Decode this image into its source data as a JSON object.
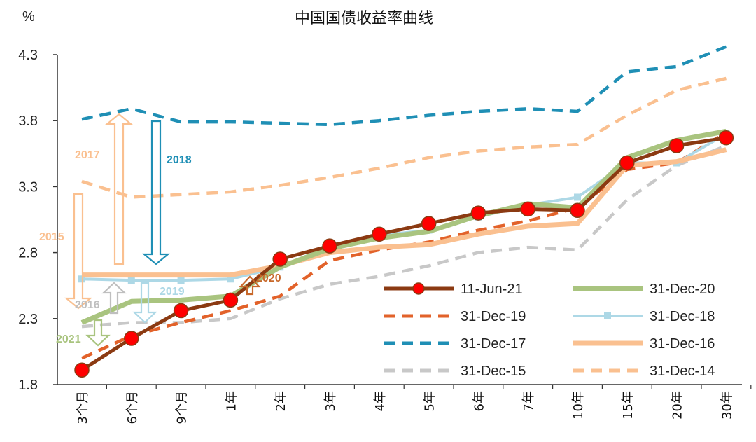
{
  "chart_data": {
    "type": "line",
    "title": "中国国债收益率曲线",
    "ylabel": "%",
    "xlabel": "",
    "ylim": [
      1.8,
      4.3
    ],
    "yticks": [
      "1.8",
      "2.3",
      "2.8",
      "3.3",
      "3.8",
      "4.3"
    ],
    "categories": [
      "3个月",
      "6个月",
      "9个月",
      "1年",
      "2年",
      "3年",
      "4年",
      "5年",
      "6年",
      "7年",
      "10年",
      "15年",
      "20年",
      "30年"
    ],
    "series": [
      {
        "name": "11-Jun-21",
        "color": "#8B3A12",
        "style": "solid-marker",
        "values": [
          1.91,
          2.15,
          2.36,
          2.44,
          2.75,
          2.85,
          2.94,
          3.02,
          3.1,
          3.13,
          3.12,
          3.48,
          3.61,
          3.67
        ]
      },
      {
        "name": "31-Dec-20",
        "color": "#A9C47F",
        "style": "solid",
        "values": [
          2.27,
          2.43,
          2.44,
          2.47,
          2.69,
          2.83,
          2.91,
          2.96,
          3.08,
          3.17,
          3.14,
          3.52,
          3.65,
          3.72
        ]
      },
      {
        "name": "31-Dec-19",
        "color": "#E2622A",
        "style": "dash",
        "values": [
          2.0,
          2.17,
          2.27,
          2.36,
          2.47,
          2.74,
          2.82,
          2.88,
          2.97,
          3.04,
          3.14,
          3.43,
          3.48,
          3.71
        ]
      },
      {
        "name": "31-Dec-18",
        "color": "#ADD8E6",
        "style": "solid-square",
        "values": [
          2.6,
          2.59,
          2.59,
          2.6,
          2.69,
          2.85,
          2.93,
          2.97,
          3.07,
          3.16,
          3.22,
          3.48,
          3.48,
          3.7
        ]
      },
      {
        "name": "31-Dec-17",
        "color": "#1F8FB5",
        "style": "dash",
        "values": [
          3.81,
          3.89,
          3.79,
          3.79,
          3.78,
          3.77,
          3.8,
          3.84,
          3.87,
          3.89,
          3.87,
          4.17,
          4.21,
          4.36
        ]
      },
      {
        "name": "31-Dec-16",
        "color": "#FAC090",
        "style": "solid",
        "values": [
          2.63,
          2.63,
          2.63,
          2.63,
          2.7,
          2.8,
          2.84,
          2.86,
          2.94,
          3.0,
          3.02,
          3.46,
          3.49,
          3.58
        ]
      },
      {
        "name": "31-Dec-15",
        "color": "#C8C8C8",
        "style": "dash",
        "values": [
          2.24,
          2.27,
          2.27,
          2.3,
          2.45,
          2.56,
          2.62,
          2.7,
          2.8,
          2.84,
          2.82,
          3.2,
          3.46,
          3.61
        ]
      },
      {
        "name": "31-Dec-14",
        "color": "#FAC090",
        "style": "dash",
        "values": [
          3.34,
          3.22,
          3.24,
          3.26,
          3.31,
          3.37,
          3.44,
          3.52,
          3.57,
          3.6,
          3.62,
          3.84,
          4.03,
          4.12
        ]
      }
    ],
    "annotations": [
      {
        "label": "2017",
        "color": "#FAC090"
      },
      {
        "label": "2018",
        "color": "#1F8FB5"
      },
      {
        "label": "2015",
        "color": "#FAC090"
      },
      {
        "label": "2016",
        "color": "#BFBFBF"
      },
      {
        "label": "2019",
        "color": "#ADD8E6"
      },
      {
        "label": "2020",
        "color": "#C8682A"
      },
      {
        "label": "2021",
        "color": "#A9C47F"
      }
    ]
  }
}
